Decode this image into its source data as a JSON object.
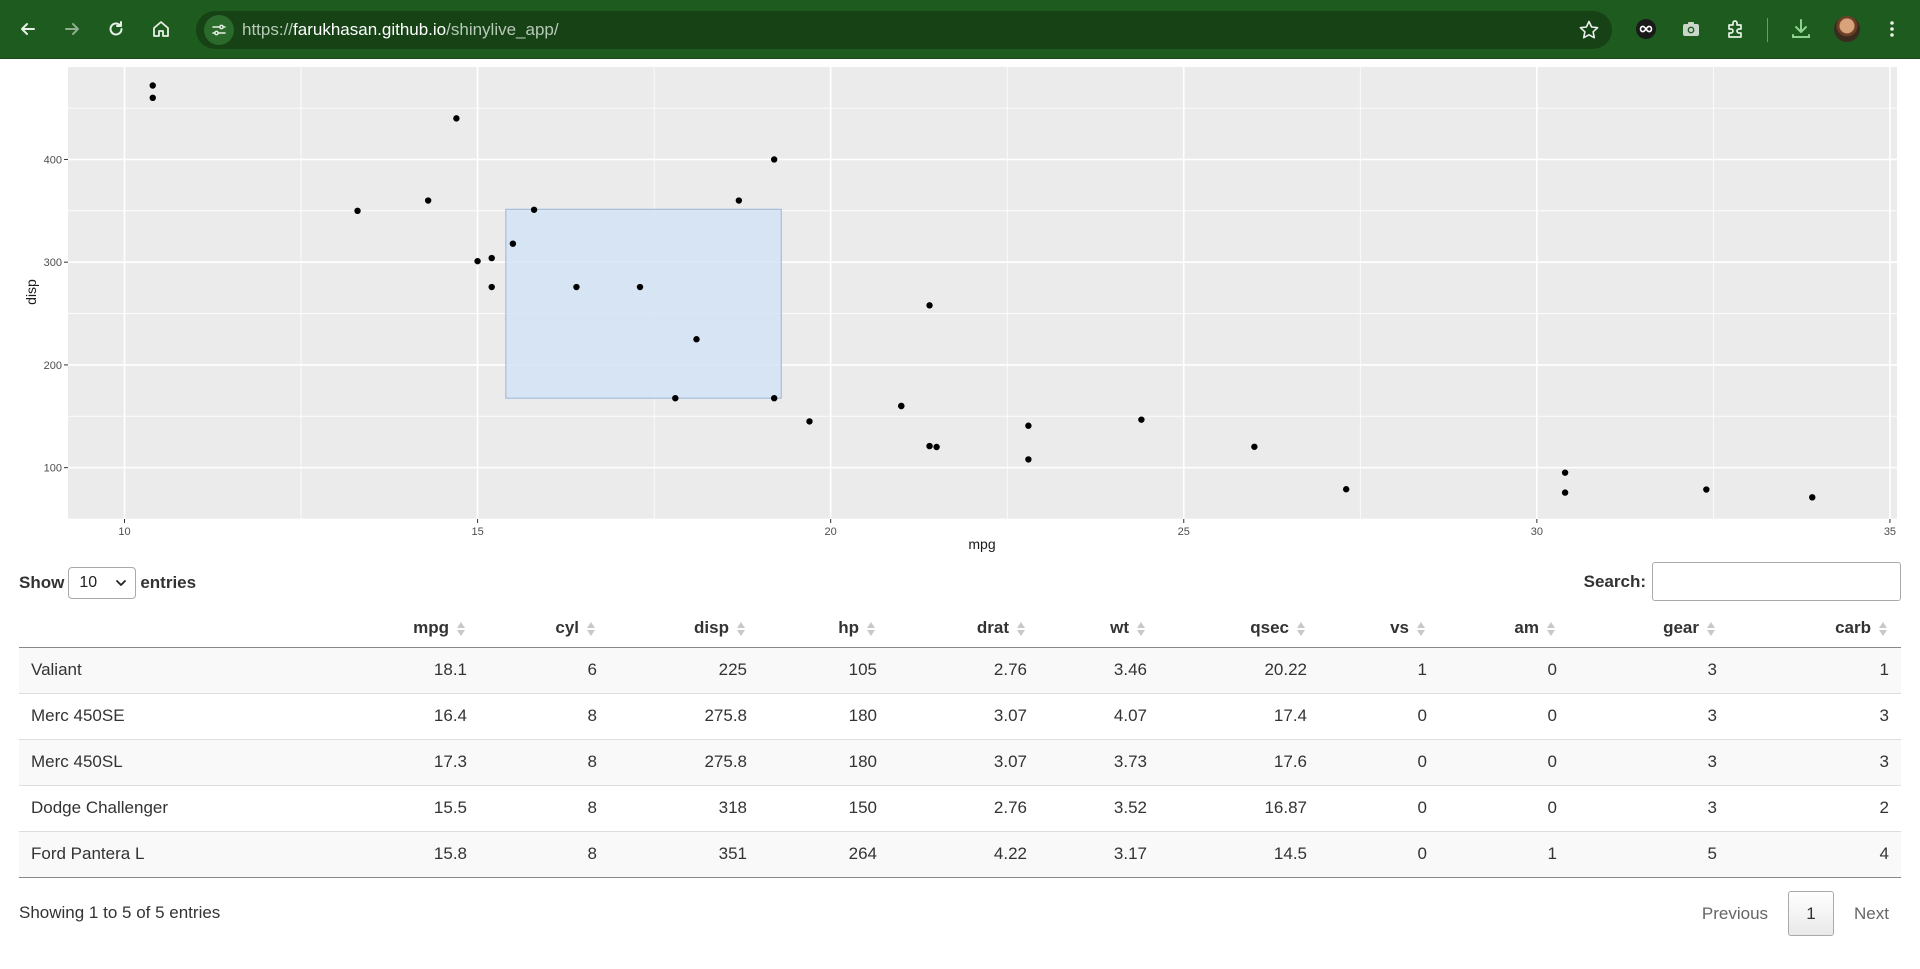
{
  "browser": {
    "url_protocol": "https://",
    "url_host": "farukhasan.github.io",
    "url_path": "/shinylive_app/"
  },
  "chart_data": {
    "type": "scatter",
    "xlabel": "mpg",
    "ylabel": "disp",
    "xlim": [
      9.2,
      35.1
    ],
    "ylim": [
      50,
      490
    ],
    "x_ticks": [
      10,
      15,
      20,
      25,
      30,
      35
    ],
    "y_ticks": [
      100,
      200,
      300,
      400
    ],
    "grid": true,
    "points": [
      {
        "x": 21.0,
        "y": 160
      },
      {
        "x": 21.0,
        "y": 160
      },
      {
        "x": 22.8,
        "y": 108
      },
      {
        "x": 21.4,
        "y": 258
      },
      {
        "x": 18.7,
        "y": 360
      },
      {
        "x": 18.1,
        "y": 225
      },
      {
        "x": 14.3,
        "y": 360
      },
      {
        "x": 24.4,
        "y": 146.7
      },
      {
        "x": 22.8,
        "y": 140.8
      },
      {
        "x": 19.2,
        "y": 167.6
      },
      {
        "x": 17.8,
        "y": 167.6
      },
      {
        "x": 16.4,
        "y": 275.8
      },
      {
        "x": 17.3,
        "y": 275.8
      },
      {
        "x": 15.2,
        "y": 275.8
      },
      {
        "x": 10.4,
        "y": 472
      },
      {
        "x": 10.4,
        "y": 460
      },
      {
        "x": 14.7,
        "y": 440
      },
      {
        "x": 32.4,
        "y": 78.7
      },
      {
        "x": 30.4,
        "y": 75.7
      },
      {
        "x": 33.9,
        "y": 71.1
      },
      {
        "x": 21.5,
        "y": 120.1
      },
      {
        "x": 15.5,
        "y": 318
      },
      {
        "x": 15.2,
        "y": 304
      },
      {
        "x": 13.3,
        "y": 350
      },
      {
        "x": 19.2,
        "y": 400
      },
      {
        "x": 27.3,
        "y": 79
      },
      {
        "x": 26.0,
        "y": 120.3
      },
      {
        "x": 30.4,
        "y": 95.1
      },
      {
        "x": 15.8,
        "y": 351
      },
      {
        "x": 19.7,
        "y": 145
      },
      {
        "x": 15.0,
        "y": 301
      },
      {
        "x": 21.4,
        "y": 121
      }
    ],
    "brush": {
      "x0": 15.4,
      "x1": 19.3,
      "y0": 167.6,
      "y1": 351.5
    },
    "colors": {
      "panel": "#ebebeb",
      "grid": "#ffffff",
      "point": "#000000",
      "brush_fill": "#d3e3f4",
      "brush_stroke": "#9ab5d6"
    }
  },
  "table": {
    "show_label": "Show",
    "entries_label": "entries",
    "length_value": "10",
    "search_label": "Search:",
    "search_value": "",
    "columns": [
      "",
      "mpg",
      "cyl",
      "disp",
      "hp",
      "drat",
      "wt",
      "qsec",
      "vs",
      "am",
      "gear",
      "carb"
    ],
    "rows": [
      [
        "Valiant",
        "18.1",
        "6",
        "225",
        "105",
        "2.76",
        "3.46",
        "20.22",
        "1",
        "0",
        "3",
        "1"
      ],
      [
        "Merc 450SE",
        "16.4",
        "8",
        "275.8",
        "180",
        "3.07",
        "4.07",
        "17.4",
        "0",
        "0",
        "3",
        "3"
      ],
      [
        "Merc 450SL",
        "17.3",
        "8",
        "275.8",
        "180",
        "3.07",
        "3.73",
        "17.6",
        "0",
        "0",
        "3",
        "3"
      ],
      [
        "Dodge Challenger",
        "15.5",
        "8",
        "318",
        "150",
        "2.76",
        "3.52",
        "16.87",
        "0",
        "0",
        "3",
        "2"
      ],
      [
        "Ford Pantera L",
        "15.8",
        "8",
        "351",
        "264",
        "4.22",
        "3.17",
        "14.5",
        "0",
        "1",
        "5",
        "4"
      ]
    ],
    "info": "Showing 1 to 5 of 5 entries",
    "previous_label": "Previous",
    "current_page": "1",
    "next_label": "Next"
  }
}
